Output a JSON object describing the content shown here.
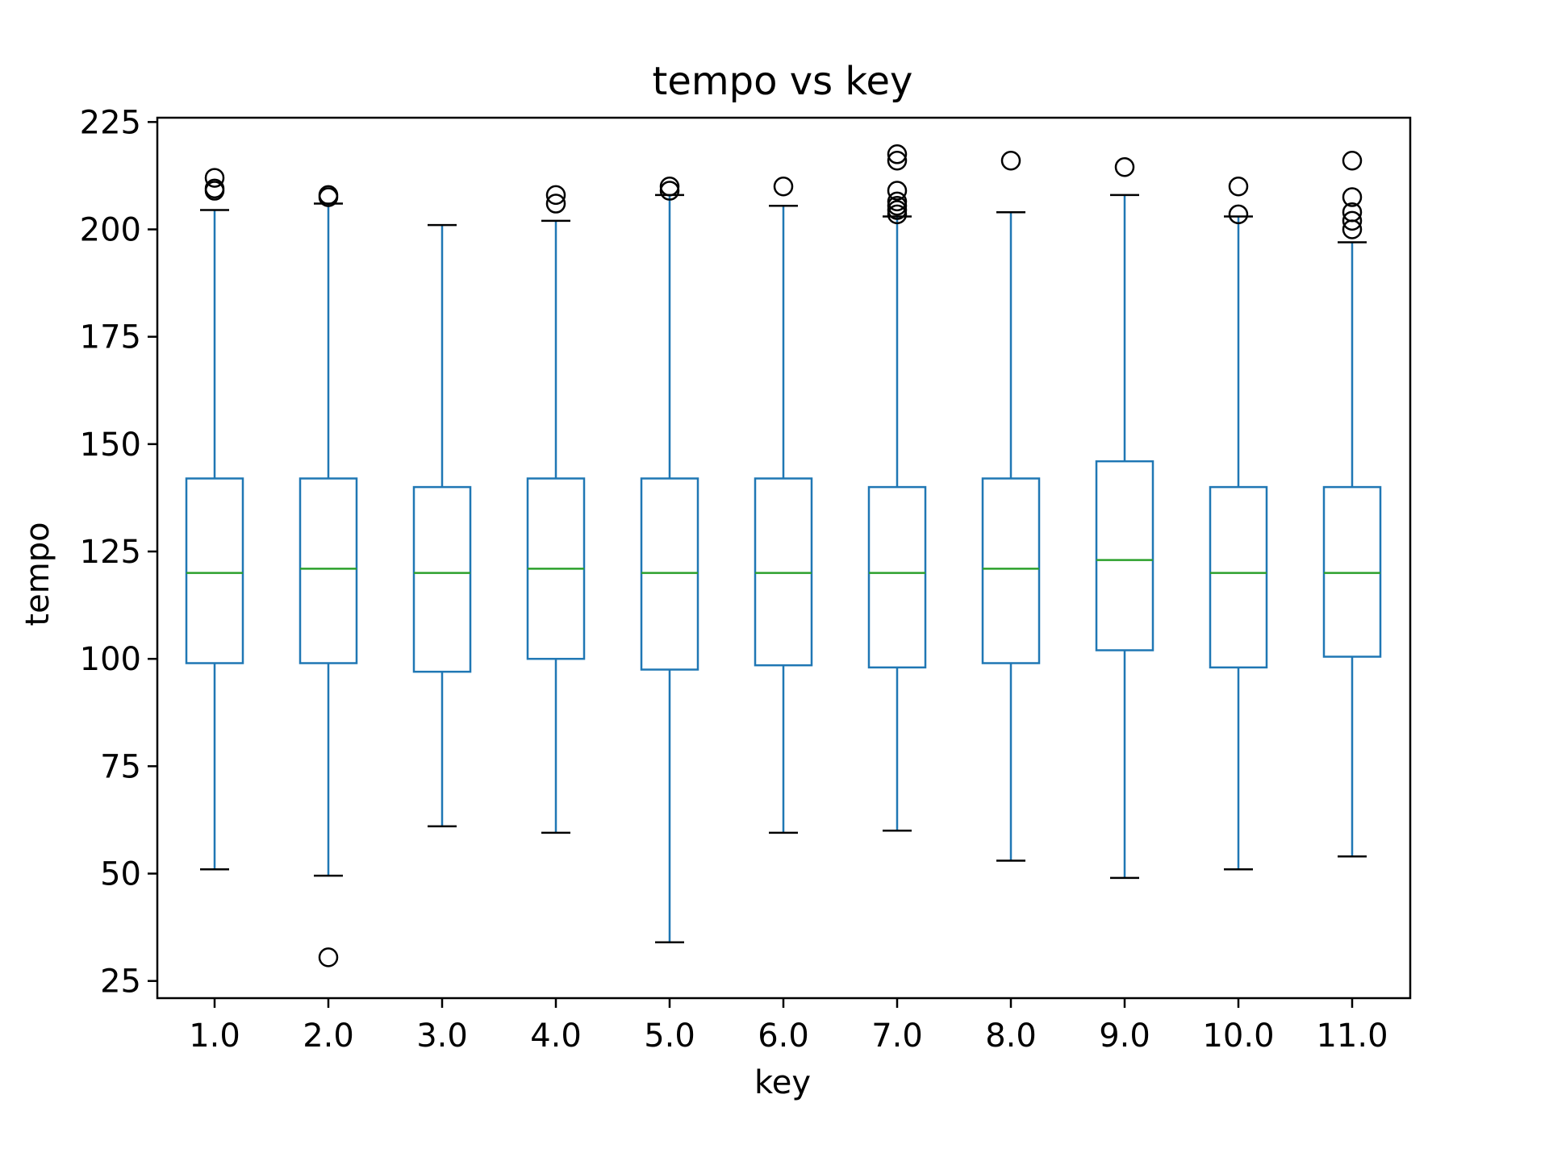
{
  "chart_data": {
    "type": "box",
    "title": "tempo vs key",
    "xlabel": "key",
    "ylabel": "tempo",
    "ylim": [
      21,
      226
    ],
    "yticks": [
      25,
      50,
      75,
      100,
      125,
      150,
      175,
      200,
      225
    ],
    "grid": false,
    "categories": [
      "1.0",
      "2.0",
      "3.0",
      "4.0",
      "5.0",
      "6.0",
      "7.0",
      "8.0",
      "9.0",
      "10.0",
      "11.0"
    ],
    "boxes": [
      {
        "whisker_low": 51,
        "q1": 99,
        "median": 120,
        "q3": 142,
        "whisker_high": 204.5,
        "outliers": [
          209,
          209.5,
          212
        ]
      },
      {
        "whisker_low": 49.5,
        "q1": 99,
        "median": 121,
        "q3": 142,
        "whisker_high": 206,
        "outliers": [
          30.5,
          207.5,
          208
        ]
      },
      {
        "whisker_low": 61,
        "q1": 97,
        "median": 120,
        "q3": 140,
        "whisker_high": 201,
        "outliers": []
      },
      {
        "whisker_low": 59.5,
        "q1": 100,
        "median": 121,
        "q3": 142,
        "whisker_high": 202,
        "outliers": [
          206,
          208
        ]
      },
      {
        "whisker_low": 34,
        "q1": 97.5,
        "median": 120,
        "q3": 142,
        "whisker_high": 208,
        "outliers": [
          209,
          210
        ]
      },
      {
        "whisker_low": 59.5,
        "q1": 98.5,
        "median": 120,
        "q3": 142,
        "whisker_high": 205.5,
        "outliers": [
          210
        ]
      },
      {
        "whisker_low": 60,
        "q1": 98,
        "median": 120,
        "q3": 140,
        "whisker_high": 203,
        "outliers": [
          203.5,
          204.5,
          205.5,
          206.5,
          209,
          216,
          217.5
        ]
      },
      {
        "whisker_low": 53,
        "q1": 99,
        "median": 121,
        "q3": 142,
        "whisker_high": 204,
        "outliers": [
          216
        ]
      },
      {
        "whisker_low": 49,
        "q1": 102,
        "median": 123,
        "q3": 146,
        "whisker_high": 208,
        "outliers": [
          214.5
        ]
      },
      {
        "whisker_low": 51,
        "q1": 98,
        "median": 120,
        "q3": 140,
        "whisker_high": 203,
        "outliers": [
          203.5,
          210
        ]
      },
      {
        "whisker_low": 54,
        "q1": 100.5,
        "median": 120,
        "q3": 140,
        "whisker_high": 197,
        "outliers": [
          200,
          202,
          204,
          207.5,
          216
        ]
      }
    ],
    "colors": {
      "box": "#1f77b4",
      "whisker": "#1f77b4",
      "cap": "#000000",
      "median": "#2ca02c",
      "outlier": "#000000",
      "axes": "#000000"
    }
  }
}
